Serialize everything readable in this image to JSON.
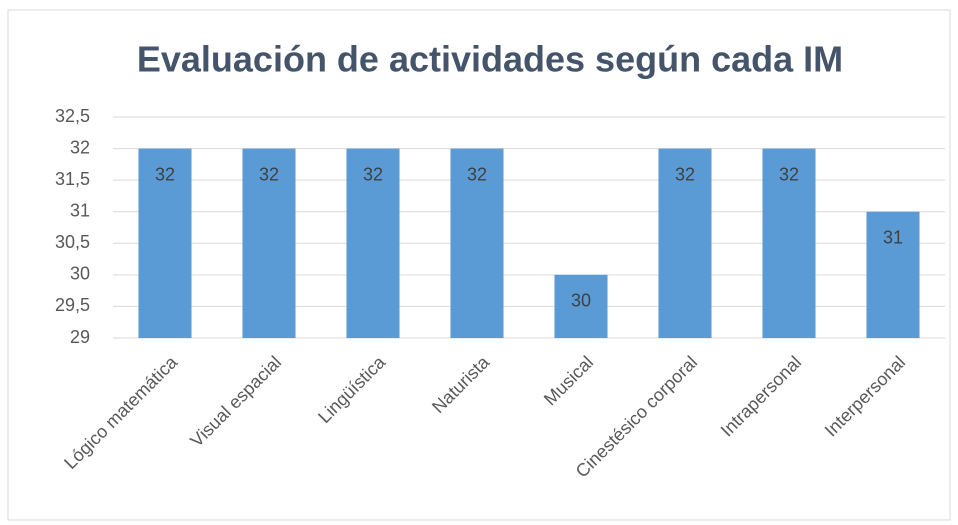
{
  "chart_data": {
    "type": "bar",
    "title": "Evaluación de actividades según cada IM",
    "categories": [
      "Lógico matemática",
      "Visual espacial",
      "Lingüística",
      "Naturista",
      "Musical",
      "Cinestésico corporal",
      "Intrapersonal",
      "Interpersonal"
    ],
    "values": [
      32,
      32,
      32,
      32,
      30,
      32,
      32,
      31
    ],
    "color": "#5b9bd5",
    "ylim": [
      29,
      32.5
    ],
    "yticks": [
      29,
      {
        "value": 29.5,
        "label": "29,5"
      },
      30,
      {
        "value": 30.5,
        "label": "30,5"
      },
      31,
      {
        "value": 31.5,
        "label": "31,5"
      },
      32,
      {
        "value": 32.5,
        "label": "32,5"
      }
    ],
    "grid": true,
    "data_labels": true
  }
}
